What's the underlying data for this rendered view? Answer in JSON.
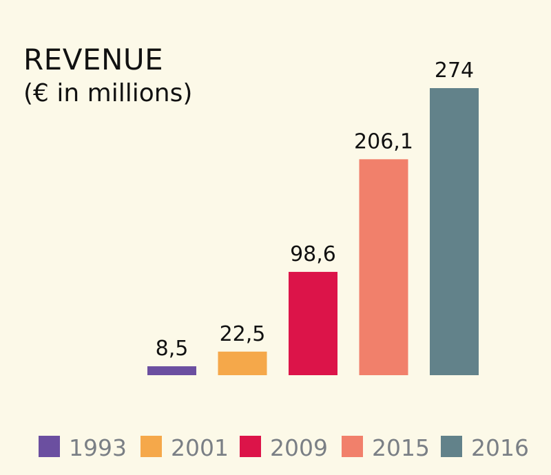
{
  "chart_data": {
    "type": "bar",
    "title": "REVENUE",
    "subtitle": "(€ in millions)",
    "categories": [
      "1993",
      "2001",
      "2009",
      "2015",
      "2016"
    ],
    "values": [
      8.5,
      22.5,
      98.6,
      206.1,
      274
    ],
    "value_labels": [
      "8,5",
      "22,5",
      "98,6",
      "206,1",
      "274"
    ],
    "colors": [
      "#6b4fa0",
      "#f5a84a",
      "#dc1449",
      "#f1806b",
      "#62828a"
    ],
    "ylim": [
      0,
      274
    ],
    "legend": "bottom",
    "grid": false,
    "xlabel": "",
    "ylabel": ""
  }
}
